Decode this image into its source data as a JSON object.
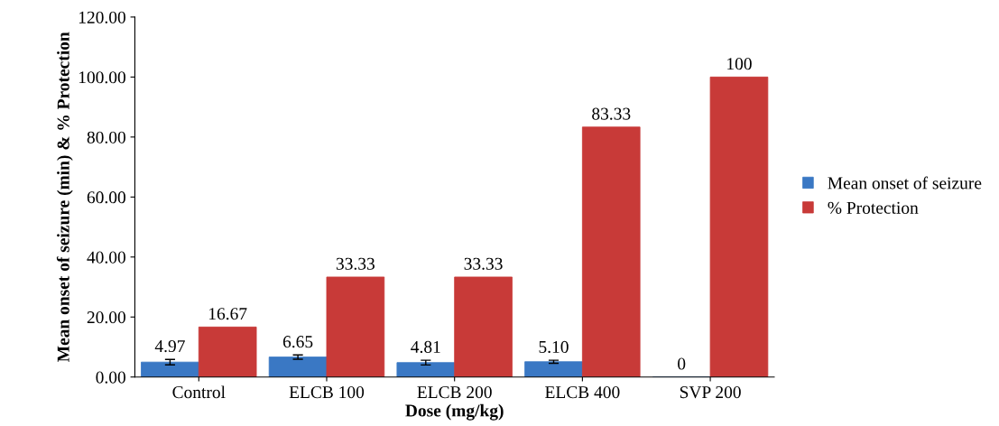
{
  "chart_data": {
    "type": "bar",
    "xlabel": "Dose (mg/kg)",
    "ylabel": "Mean onset of seizure (min) & % Protection",
    "categories": [
      "Control",
      "ELCB 100",
      "ELCB 200",
      "ELCB 400",
      "SVP 200"
    ],
    "series": [
      {
        "name": "Mean onset of seizure",
        "color": "#3a78c4",
        "values": [
          4.97,
          6.65,
          4.81,
          5.1,
          0
        ],
        "errors": [
          0.9,
          0.7,
          0.8,
          0.5,
          null
        ],
        "value_labels": [
          "4.97",
          "6.65",
          "4.81",
          "5.10",
          "0"
        ]
      },
      {
        "name": "% Protection",
        "color": "#c83a38",
        "values": [
          16.67,
          33.33,
          33.33,
          83.33,
          100
        ],
        "value_labels": [
          "16.67",
          "33.33",
          "33.33",
          "83.33",
          "100"
        ]
      }
    ],
    "ylim": [
      0,
      120
    ],
    "yticks": [
      {
        "value": 0,
        "label": "0.00"
      },
      {
        "value": 20,
        "label": "20.00"
      },
      {
        "value": 40,
        "label": "40.00"
      },
      {
        "value": 60,
        "label": "60.00"
      },
      {
        "value": 80,
        "label": "80.00"
      },
      {
        "value": 100,
        "label": "100.00"
      },
      {
        "value": 120,
        "label": "120.00"
      }
    ],
    "grid": false,
    "legend": "right"
  }
}
